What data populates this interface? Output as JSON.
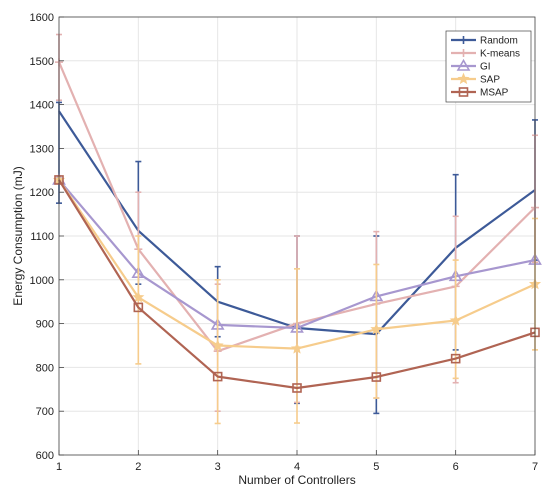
{
  "chart_data": {
    "type": "line",
    "xlabel": "Number of Controllers",
    "ylabel": "Energy Consumption (mJ)",
    "x": [
      1,
      2,
      3,
      4,
      5,
      6,
      7
    ],
    "xlim": [
      1,
      7
    ],
    "ylim": [
      600,
      1600
    ],
    "yticks": [
      600,
      700,
      800,
      900,
      1000,
      1100,
      1200,
      1300,
      1400,
      1500,
      1600
    ],
    "grid": true,
    "legend_position": "top-right",
    "series": [
      {
        "name": "Random",
        "color": "#3d5a98",
        "marker": "none",
        "values": [
          1385,
          1112,
          950,
          890,
          876,
          1073,
          1205
        ],
        "err_low": [
          1175,
          990,
          870,
          718,
          695,
          840,
          1045
        ],
        "err_high": [
          1405,
          1270,
          1030,
          1100,
          1100,
          1240,
          1365
        ]
      },
      {
        "name": "K-means",
        "color": "#e3b1b1",
        "marker": "plus",
        "values": [
          1497,
          1070,
          837,
          900,
          945,
          985,
          1165
        ],
        "err_low": [
          1410,
          960,
          700,
          720,
          730,
          765,
          1040
        ],
        "err_high": [
          1560,
          1200,
          990,
          1100,
          1110,
          1145,
          1330
        ]
      },
      {
        "name": "GI",
        "color": "#a797cf",
        "marker": "triangle",
        "values": [
          1228,
          1015,
          897,
          890,
          962,
          1008,
          1045
        ],
        "err_low": [
          1228,
          1015,
          897,
          890,
          962,
          1008,
          1045
        ],
        "err_high": [
          1228,
          1015,
          897,
          890,
          962,
          1008,
          1045
        ]
      },
      {
        "name": "SAP",
        "color": "#f6cc8c",
        "marker": "star",
        "values": [
          1228,
          960,
          850,
          843,
          887,
          907,
          990
        ],
        "err_low": [
          1228,
          808,
          672,
          673,
          730,
          775,
          840
        ],
        "err_high": [
          1228,
          1100,
          1000,
          1025,
          1035,
          1045,
          1140
        ]
      },
      {
        "name": "MSAP",
        "color": "#b06453",
        "marker": "square",
        "values": [
          1228,
          937,
          779,
          753,
          778,
          820,
          880
        ],
        "err_low": [
          1228,
          937,
          779,
          753,
          778,
          820,
          880
        ],
        "err_high": [
          1228,
          937,
          779,
          753,
          778,
          820,
          880
        ]
      }
    ]
  }
}
